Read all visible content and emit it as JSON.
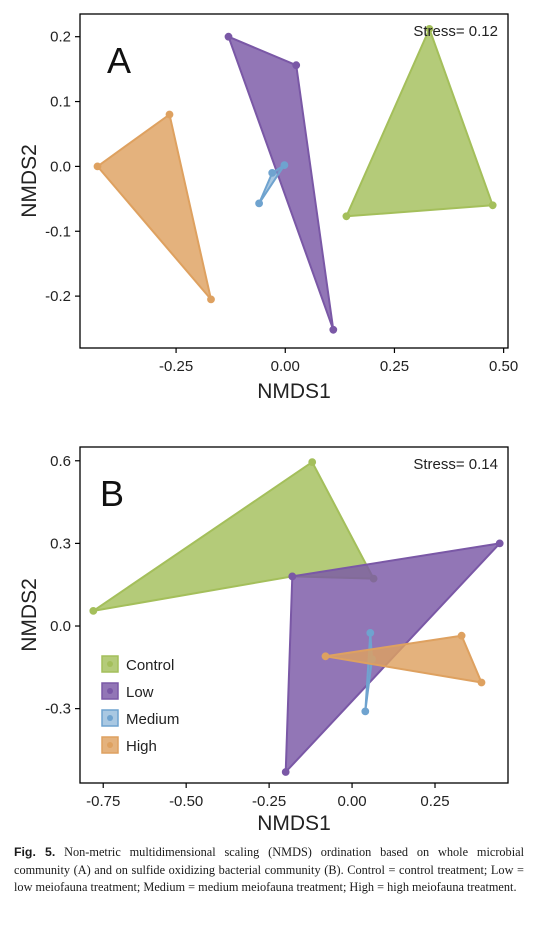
{
  "chart_data": [
    {
      "type": "scatter",
      "panel_label": "A",
      "stress_text": "Stress= 0.12",
      "xlabel": "NMDS1",
      "ylabel": "NMDS2",
      "xlim": [
        -0.47,
        0.51
      ],
      "ylim": [
        -0.28,
        0.235
      ],
      "xticks": [
        -0.25,
        0.0,
        0.25,
        0.5
      ],
      "xtick_labels": [
        "-0.25",
        "0.00",
        "0.25",
        "0.50"
      ],
      "yticks": [
        -0.2,
        -0.1,
        0.0,
        0.1,
        0.2
      ],
      "ytick_labels": [
        "-0.2",
        "-0.1",
        "0.0",
        "0.1",
        "0.2"
      ],
      "series": [
        {
          "key": "control",
          "points": [
            [
              0.33,
              0.212
            ],
            [
              0.475,
              -0.06
            ],
            [
              0.14,
              -0.077
            ]
          ]
        },
        {
          "key": "low",
          "points": [
            [
              -0.13,
              0.2
            ],
            [
              0.025,
              0.156
            ],
            [
              0.11,
              -0.252
            ]
          ]
        },
        {
          "key": "medium",
          "points": [
            [
              -0.03,
              -0.01
            ],
            [
              -0.002,
              0.002
            ],
            [
              -0.06,
              -0.057
            ]
          ]
        },
        {
          "key": "high",
          "points": [
            [
              -0.265,
              0.08
            ],
            [
              -0.43,
              0.0
            ],
            [
              -0.17,
              -0.205
            ]
          ]
        }
      ]
    },
    {
      "type": "scatter",
      "panel_label": "B",
      "stress_text": "Stress= 0.14",
      "xlabel": "NMDS1",
      "ylabel": "NMDS2",
      "xlim": [
        -0.82,
        0.47
      ],
      "ylim": [
        -0.57,
        0.65
      ],
      "xticks": [
        -0.75,
        -0.5,
        -0.25,
        0.0,
        0.25
      ],
      "xtick_labels": [
        "-0.75",
        "-0.50",
        "-0.25",
        "0.00",
        "0.25"
      ],
      "yticks": [
        -0.3,
        0.0,
        0.3,
        0.6
      ],
      "ytick_labels": [
        "-0.3",
        "0.0",
        "0.3",
        "0.6"
      ],
      "series": [
        {
          "key": "control",
          "points": [
            [
              -0.12,
              0.595
            ],
            [
              -0.78,
              0.055
            ],
            [
              -0.18,
              0.18
            ],
            [
              0.065,
              0.172
            ]
          ]
        },
        {
          "key": "low",
          "points": [
            [
              0.445,
              0.3
            ],
            [
              -0.2,
              -0.53
            ],
            [
              -0.18,
              0.18
            ]
          ]
        },
        {
          "key": "medium",
          "points": [
            [
              0.055,
              -0.025
            ],
            [
              0.04,
              -0.31
            ],
            [
              0.06,
              -0.12
            ]
          ]
        },
        {
          "key": "high",
          "points": [
            [
              0.33,
              -0.035
            ],
            [
              -0.08,
              -0.11
            ],
            [
              0.39,
              -0.205
            ]
          ]
        }
      ],
      "legend": {
        "position": "bottom-left",
        "entries": [
          {
            "key": "control",
            "label": "Control"
          },
          {
            "key": "low",
            "label": "Low"
          },
          {
            "key": "medium",
            "label": "Medium"
          },
          {
            "key": "high",
            "label": "High"
          }
        ]
      }
    }
  ],
  "colors": {
    "control": "#a4bf5b",
    "low": "#7a58a6",
    "medium": "#6fa3cf",
    "high": "#dea160",
    "axis": "#000000",
    "text": "#222222"
  },
  "caption": {
    "label": "Fig. 5.",
    "text": "Non-metric multidimensional scaling (NMDS) ordination based on whole microbial community (A) and on sulfide oxidizing bacterial community (B). Control = control treatment; Low = low meiofauna treatment; Medium = medium meiofauna treatment; High = high meiofauna treatment."
  }
}
